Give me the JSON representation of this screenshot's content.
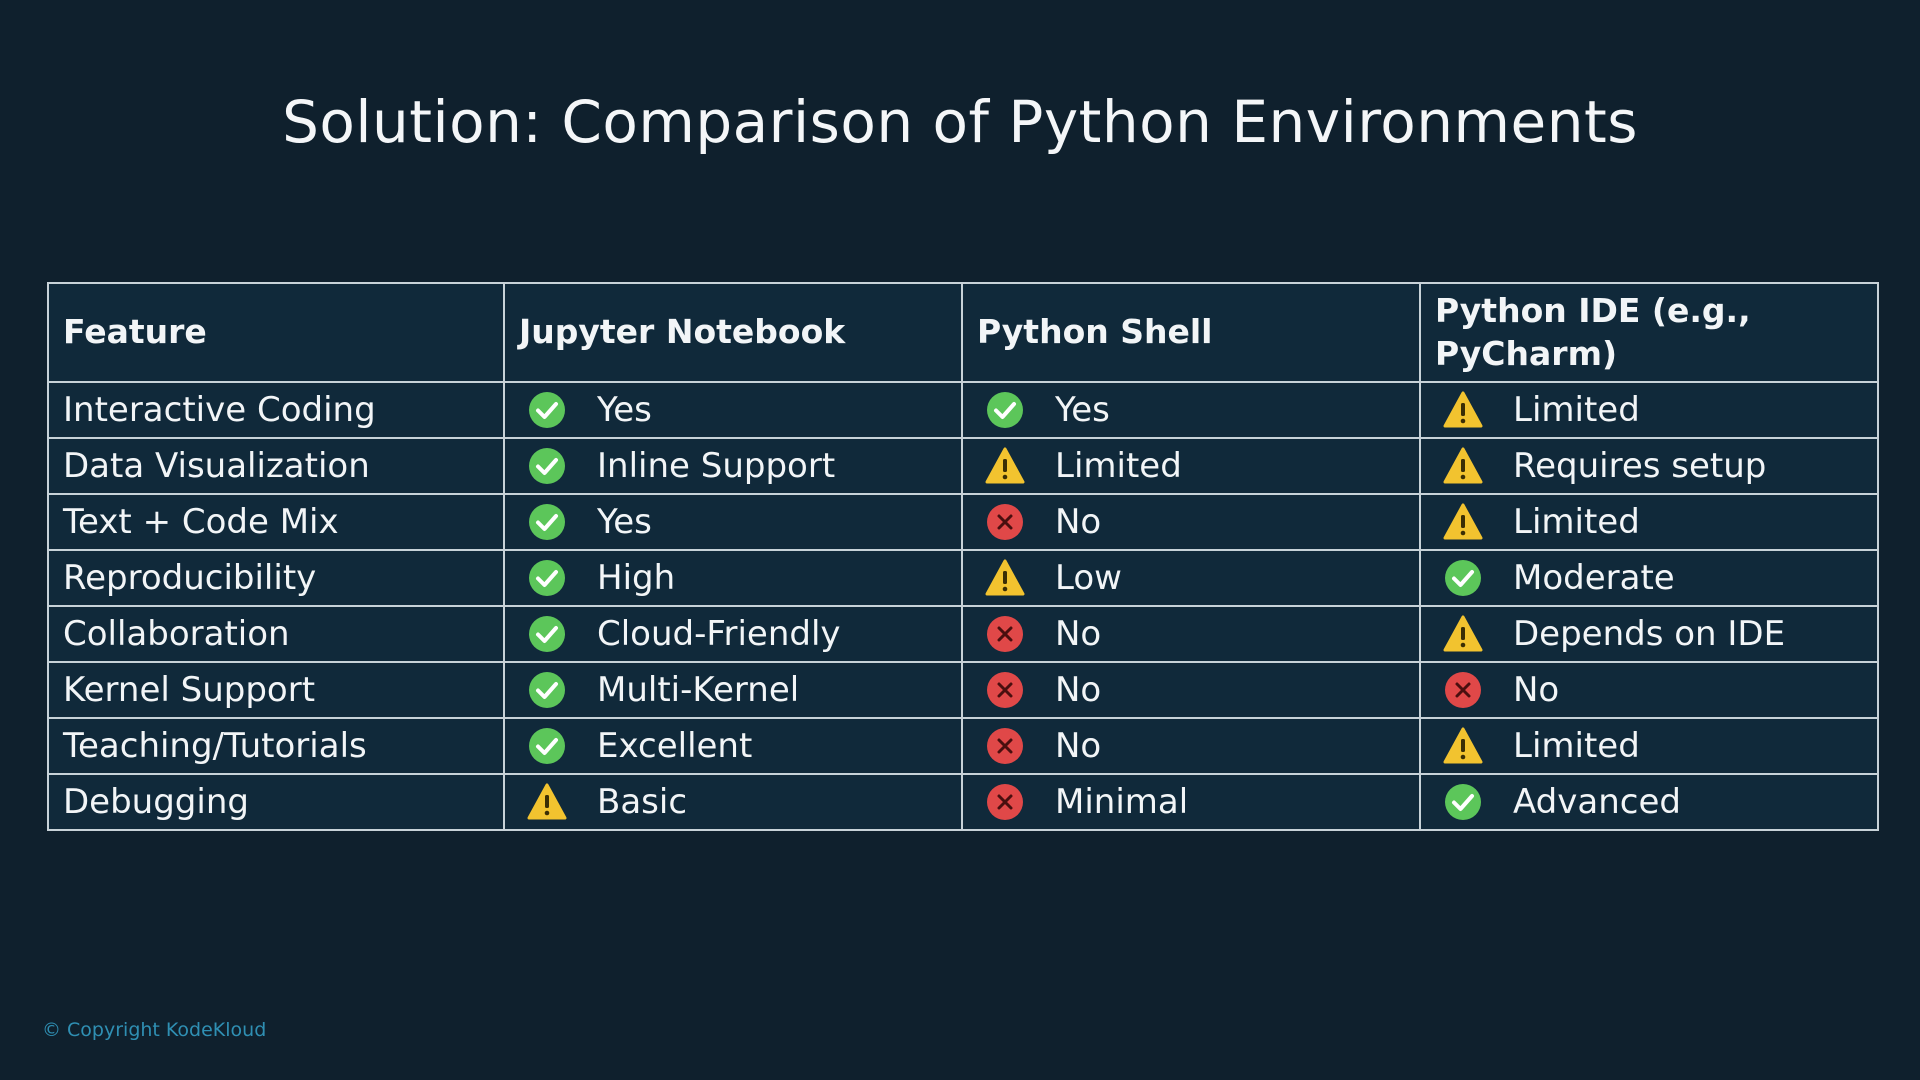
{
  "title": "Solution: Comparison of Python Environments",
  "table": {
    "header": [
      "Feature",
      "Jupyter Notebook",
      "Python Shell",
      "Python IDE (e.g., PyCharm)"
    ],
    "rows": [
      [
        "Interactive Coding",
        "Yes",
        "Yes",
        "Limited"
      ],
      [
        "Data Visualization",
        "Inline Support",
        "Limited",
        "Requires setup"
      ],
      [
        "Text + Code Mix",
        "Yes",
        "No",
        "Limited"
      ],
      [
        "Reproducibility",
        "High",
        "Low",
        "Moderate"
      ],
      [
        "Collaboration",
        "Cloud-Friendly",
        "No",
        "Depends on IDE"
      ],
      [
        "Kernel Support",
        "Multi-Kernel",
        "No",
        "No"
      ],
      [
        "Teaching/Tutorials",
        "Excellent",
        "No",
        "Limited"
      ],
      [
        "Debugging",
        "Basic",
        "Minimal",
        "Advanced"
      ]
    ]
  },
  "footer": "© Copyright KodeKloud"
}
